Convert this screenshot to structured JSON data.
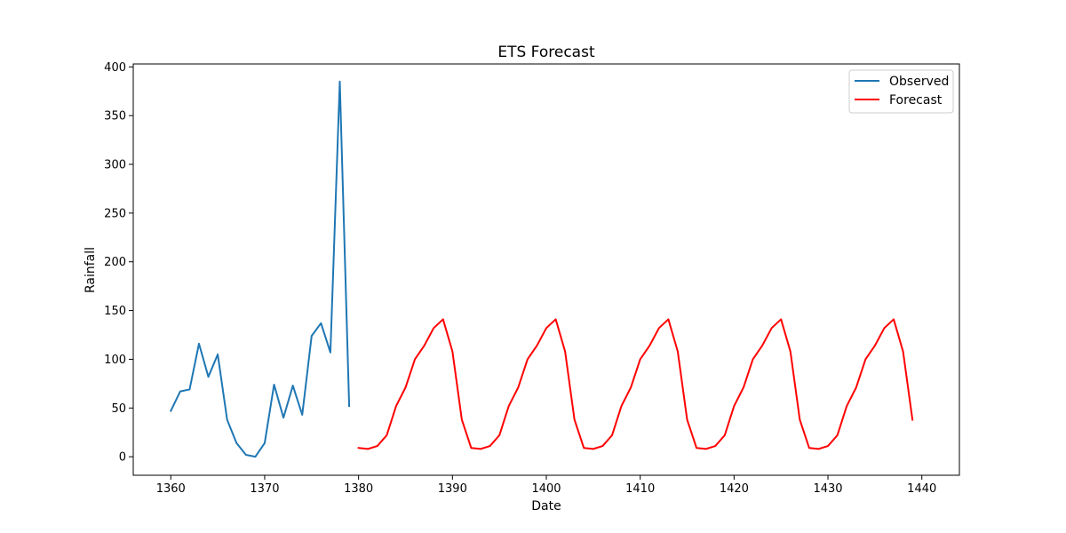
{
  "chart_data": {
    "type": "line",
    "title": "ETS Forecast",
    "xlabel": "Date",
    "ylabel": "Rainfall",
    "xlim": [
      1356,
      1444
    ],
    "ylim": [
      -19,
      403
    ],
    "xticks": [
      1360,
      1370,
      1380,
      1390,
      1400,
      1410,
      1420,
      1430,
      1440
    ],
    "yticks": [
      0,
      50,
      100,
      150,
      200,
      250,
      300,
      350,
      400
    ],
    "grid": false,
    "legend_position": "top-right",
    "series": [
      {
        "name": "Observed",
        "color": "#1f77b4",
        "x": [
          1360,
          1361,
          1362,
          1363,
          1364,
          1365,
          1366,
          1367,
          1368,
          1369,
          1370,
          1371,
          1372,
          1373,
          1374,
          1375,
          1376,
          1377,
          1378,
          1379
        ],
        "y": [
          47,
          67,
          69,
          116,
          82,
          105,
          38,
          14,
          2,
          0,
          14,
          74,
          40,
          73,
          43,
          124,
          137,
          107,
          385,
          52
        ]
      },
      {
        "name": "Forecast",
        "color": "#ff0000",
        "x": [
          1380,
          1381,
          1382,
          1383,
          1384,
          1385,
          1386,
          1387,
          1388,
          1389,
          1390,
          1391,
          1392,
          1393,
          1394,
          1395,
          1396,
          1397,
          1398,
          1399,
          1400,
          1401,
          1402,
          1403,
          1404,
          1405,
          1406,
          1407,
          1408,
          1409,
          1410,
          1411,
          1412,
          1413,
          1414,
          1415,
          1416,
          1417,
          1418,
          1419,
          1420,
          1421,
          1422,
          1423,
          1424,
          1425,
          1426,
          1427,
          1428,
          1429,
          1430,
          1431,
          1432,
          1433,
          1434,
          1435,
          1436,
          1437,
          1438,
          1439
        ],
        "y": [
          9,
          8,
          11,
          22,
          52,
          71,
          100,
          114,
          132,
          141,
          108,
          38,
          9,
          8,
          11,
          22,
          52,
          71,
          100,
          114,
          132,
          141,
          108,
          38,
          9,
          8,
          11,
          22,
          52,
          71,
          100,
          114,
          132,
          141,
          108,
          38,
          9,
          8,
          11,
          22,
          52,
          71,
          100,
          114,
          132,
          141,
          108,
          38,
          9,
          8,
          11,
          22,
          52,
          71,
          100,
          114,
          132,
          141,
          108,
          38
        ]
      }
    ]
  }
}
